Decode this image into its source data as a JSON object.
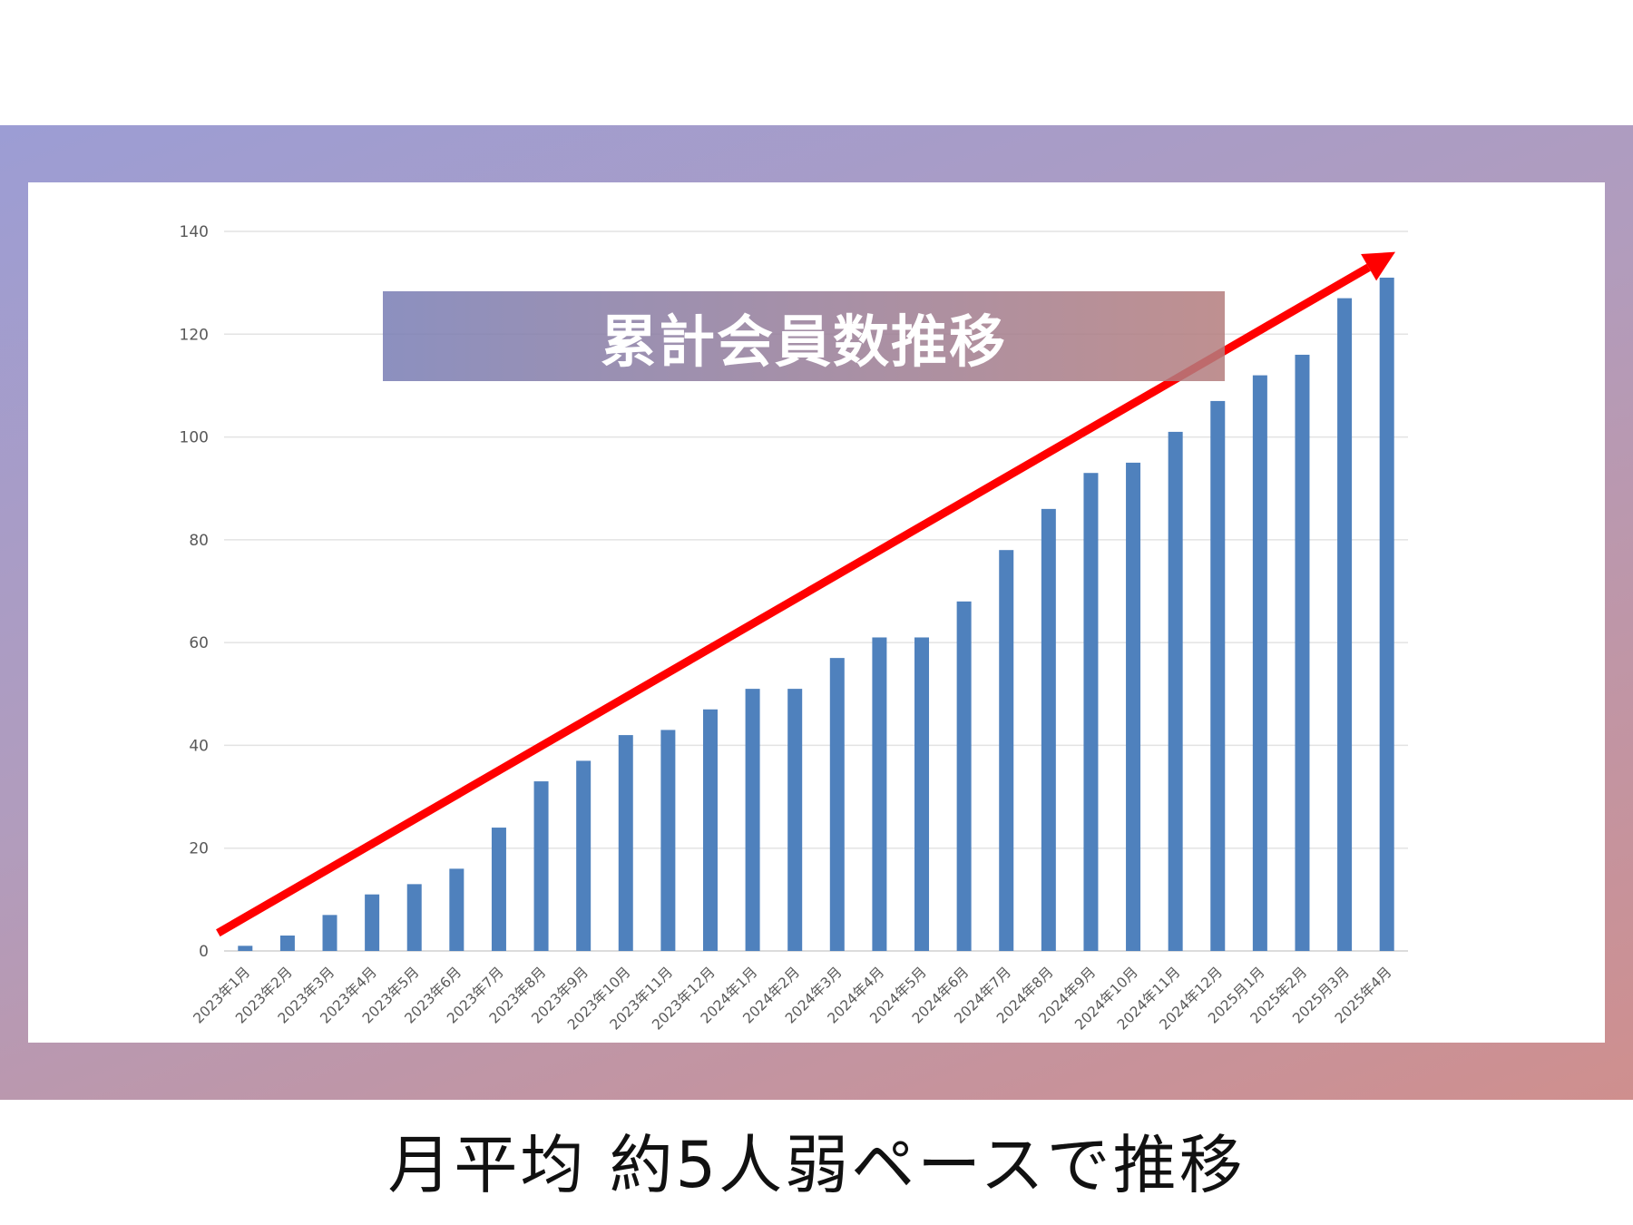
{
  "chart_data": {
    "type": "bar",
    "title": "累計会員数推移",
    "xlabel": "",
    "ylabel": "",
    "ylim": [
      0,
      140
    ],
    "yticks": [
      0,
      20,
      40,
      60,
      80,
      100,
      120,
      140
    ],
    "grid": true,
    "categories": [
      "2023年1月",
      "2023年2月",
      "2023年3月",
      "2023年4月",
      "2023年5月",
      "2023年6月",
      "2023年7月",
      "2023年8月",
      "2023年9月",
      "2023年10月",
      "2023年11月",
      "2023年12月",
      "2024年1月",
      "2024年2月",
      "2024年3月",
      "2024年4月",
      "2024年5月",
      "2024年6月",
      "2024年7月",
      "2024年8月",
      "2024年9月",
      "2024年10月",
      "2024年11月",
      "2024年12月",
      "2025月1月",
      "2025年2月",
      "2025月3月",
      "2025年4月"
    ],
    "values": [
      1,
      3,
      7,
      11,
      13,
      16,
      24,
      33,
      37,
      42,
      43,
      47,
      51,
      51,
      57,
      61,
      61,
      68,
      78,
      86,
      93,
      95,
      101,
      107,
      112,
      116,
      127,
      131
    ],
    "bar_color": "#4f81bd",
    "trend_arrow": {
      "color": "#ff0000",
      "from": [
        0,
        3.5
      ],
      "to": [
        27.2,
        136
      ]
    },
    "annotation": "月平均 約5人弱ペースで推移"
  }
}
